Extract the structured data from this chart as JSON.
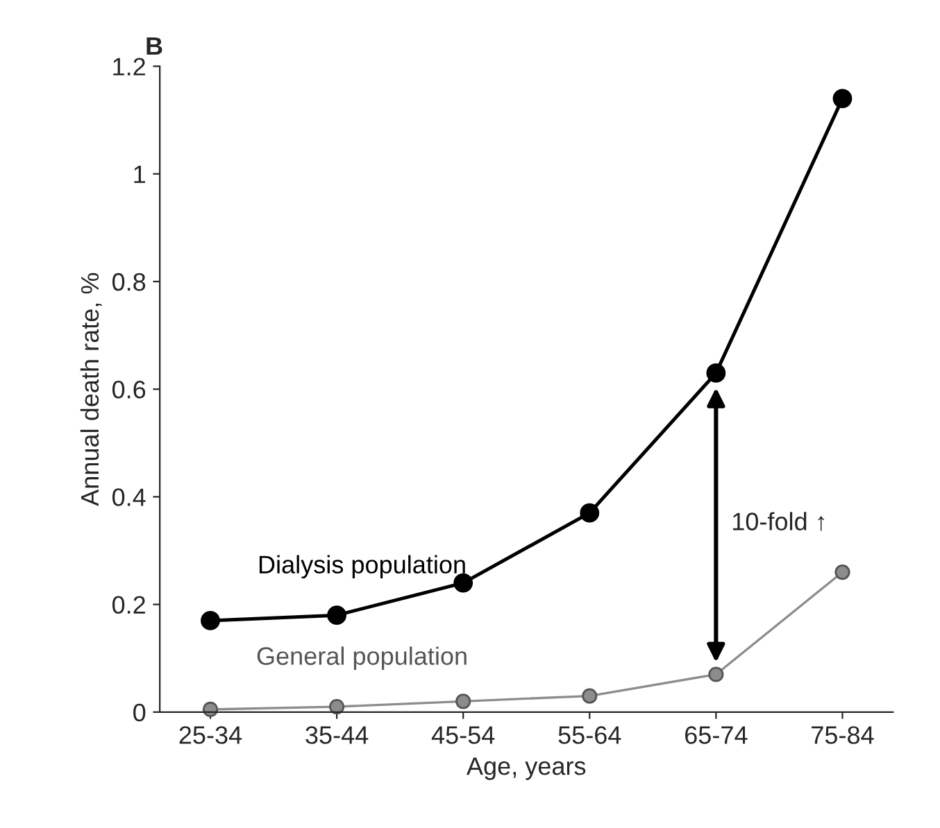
{
  "chart_data": {
    "type": "line",
    "title": "B",
    "xlabel": "Age, years",
    "ylabel": "Annual death rate, %",
    "categories": [
      "25-34",
      "35-44",
      "45-54",
      "55-64",
      "65-74",
      "75-84"
    ],
    "series": [
      {
        "name": "Dialysis population",
        "color": "#000000",
        "values": [
          0.17,
          0.18,
          0.24,
          0.37,
          0.63,
          1.14
        ]
      },
      {
        "name": "General population",
        "color": "#8c8c8c",
        "values": [
          0.005,
          0.01,
          0.02,
          0.03,
          0.07,
          0.26
        ]
      }
    ],
    "annotations": [
      "10-fold ↑"
    ],
    "ylim": [
      0,
      1.2
    ],
    "yticks": [
      0,
      0.2,
      0.4,
      0.6,
      0.8,
      1,
      1.2
    ],
    "marker": "circle",
    "line_style": "solid",
    "grid": false,
    "legend": false
  }
}
